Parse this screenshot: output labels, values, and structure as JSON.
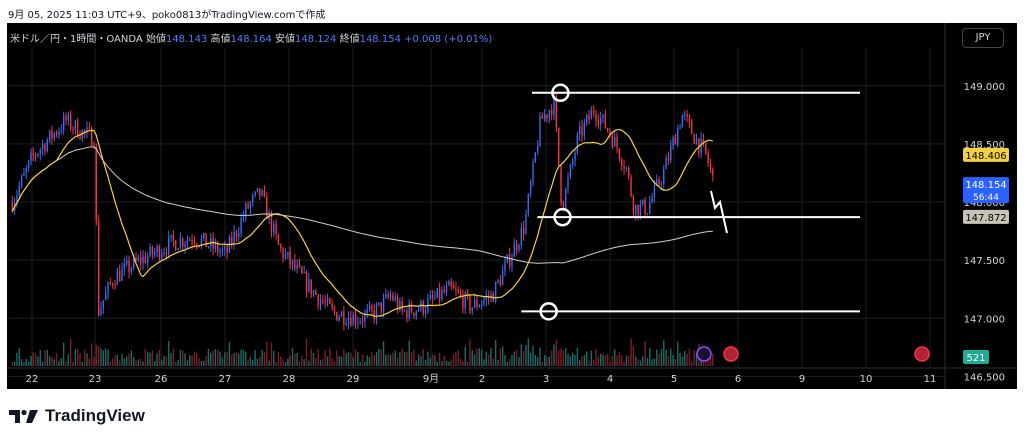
{
  "caption": "9月 05, 2025 11:03 UTC+9、poko0813がTradingView.comで作成",
  "legend": {
    "symbol": "米ドル／円・1時間・OANDA",
    "open_label": "始値",
    "open": "148.143",
    "high_label": "高値",
    "high": "148.164",
    "low_label": "安値",
    "low": "148.124",
    "close_label": "終値",
    "close": "148.154",
    "change": "+0.008 (+0.01%)"
  },
  "currency_button": "JPY",
  "brand": "TradingView",
  "colors": {
    "background": "#000000",
    "grid": "#1f2129",
    "up": "#3b6cf0",
    "down": "#f23645",
    "ma_short": "#f5d142",
    "ma_long": "#d7d1c4",
    "lines": "#ffffff",
    "vol_up": "#1e6b66",
    "vol_down": "#7a1f2a",
    "current_tag": "#2962ff"
  },
  "chart_data": {
    "type": "candlestick",
    "symbol": "USDJPY 1h OANDA",
    "x_ticks": [
      "22",
      "23",
      "26",
      "27",
      "28",
      "29",
      "9月",
      "2",
      "3",
      "4",
      "5",
      "6",
      "9",
      "10",
      "11"
    ],
    "y_ticks": [
      "149.000",
      "148.500",
      "148.000",
      "147.500",
      "147.000",
      "146.500"
    ],
    "ylim": [
      146.44,
      149.05
    ],
    "price_tags": [
      {
        "label": "148.406",
        "value": 148.406,
        "kind": "ma_short"
      },
      {
        "label": "148.154",
        "sublabel": "56:44",
        "value": 148.154,
        "kind": "current"
      },
      {
        "label": "147.872",
        "value": 147.872,
        "kind": "ma_long"
      }
    ],
    "volume_tag": "521",
    "horizontal_lines": [
      {
        "value": 148.94,
        "from_day": 2.3,
        "to_day": 5.96
      },
      {
        "value": 147.87,
        "from_day": 2.4,
        "to_day": 5.96
      },
      {
        "value": 147.06,
        "from_day": 2.1,
        "to_day": 5.96
      }
    ],
    "circles": [
      {
        "day": 2.27,
        "value": 148.94
      },
      {
        "day": 2.31,
        "value": 147.87
      },
      {
        "day": 2.05,
        "value": 147.06
      }
    ],
    "anchors": [
      {
        "day": -8.0,
        "price": 148.0
      },
      {
        "day": -7.6,
        "price": 148.4
      },
      {
        "day": -7.0,
        "price": 148.7
      },
      {
        "day": -6.7,
        "price": 148.6
      },
      {
        "day": -6.45,
        "price": 148.55
      },
      {
        "day": -6.4,
        "price": 147.05
      },
      {
        "day": -6.1,
        "price": 147.35
      },
      {
        "day": -5.6,
        "price": 147.5
      },
      {
        "day": -5.0,
        "price": 147.65
      },
      {
        "day": -4.6,
        "price": 147.7
      },
      {
        "day": -4.0,
        "price": 147.55
      },
      {
        "day": -3.6,
        "price": 147.95
      },
      {
        "day": -3.35,
        "price": 148.08
      },
      {
        "day": -3.0,
        "price": 147.6
      },
      {
        "day": -2.4,
        "price": 147.25
      },
      {
        "day": -2.0,
        "price": 147.05
      },
      {
        "day": -1.5,
        "price": 147.0
      },
      {
        "day": -1.2,
        "price": 147.05
      },
      {
        "day": -0.9,
        "price": 147.2
      },
      {
        "day": -0.7,
        "price": 147.05
      },
      {
        "day": -0.3,
        "price": 147.1
      },
      {
        "day": 0.2,
        "price": 147.25
      },
      {
        "day": 0.6,
        "price": 147.1
      },
      {
        "day": 1.0,
        "price": 147.2
      },
      {
        "day": 1.6,
        "price": 147.8
      },
      {
        "day": 1.9,
        "price": 148.7
      },
      {
        "day": 2.15,
        "price": 148.85
      },
      {
        "day": 2.3,
        "price": 147.95
      },
      {
        "day": 2.6,
        "price": 148.55
      },
      {
        "day": 2.9,
        "price": 148.8
      },
      {
        "day": 3.2,
        "price": 148.6
      },
      {
        "day": 3.5,
        "price": 148.3
      },
      {
        "day": 3.65,
        "price": 147.95
      },
      {
        "day": 3.9,
        "price": 147.95
      },
      {
        "day": 4.2,
        "price": 148.25
      },
      {
        "day": 4.55,
        "price": 148.75
      },
      {
        "day": 4.8,
        "price": 148.55
      },
      {
        "day": 5.0,
        "price": 148.4
      },
      {
        "day": 5.15,
        "price": 148.15
      }
    ]
  }
}
